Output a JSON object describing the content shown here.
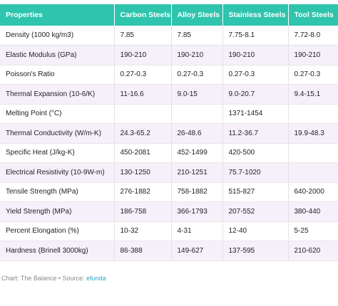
{
  "table": {
    "headers": [
      "Properties",
      "Carbon Steels",
      "Alloy Steels",
      "Stainless Steels",
      "Tool Steels"
    ],
    "rows": [
      [
        "Density (1000 kg/m3)",
        "7.85",
        "7.85",
        "7.75-8.1",
        "7.72-8.0"
      ],
      [
        "Elastic Modulus (GPa)",
        "190-210",
        "190-210",
        "190-210",
        "190-210"
      ],
      [
        "Poisson's Ratio",
        "0.27-0.3",
        "0.27-0.3",
        "0.27-0.3",
        "0.27-0.3"
      ],
      [
        "Thermal Expansion (10-6/K)",
        "11-16.6",
        "9.0-15",
        "9.0-20.7",
        "9.4-15.1"
      ],
      [
        "Melting Point (°C)",
        "",
        "",
        "1371-1454",
        ""
      ],
      [
        "Thermal Conductivity (W/m-K)",
        "24.3-65.2",
        "26-48.6",
        "11.2-36.7",
        "19.9-48.3"
      ],
      [
        "Specific Heat (J/kg-K)",
        "450-2081",
        "452-1499",
        "420-500",
        ""
      ],
      [
        "Electrical Resistivity (10-9W-m)",
        "130-1250",
        "210-1251",
        "75.7-1020",
        ""
      ],
      [
        "Tensile Strength (MPa)",
        "276-1882",
        "758-1882",
        "515-827",
        "640-2000"
      ],
      [
        "Yield Strength (MPa)",
        "186-758",
        "366-1793",
        "207-552",
        "380-440"
      ],
      [
        "Percent Elongation (%)",
        "10-32",
        "4-31",
        "12-40",
        "5-25"
      ],
      [
        "Hardness (Brinell 3000kg)",
        "86-388",
        "149-627",
        "137-595",
        "210-620"
      ]
    ]
  },
  "footer": {
    "prefix": "Chart: The Balance • Source: ",
    "source_link": "efunda"
  },
  "colors": {
    "header_bg": "#2ec4ad",
    "stripe_bg": "#f6f0fb",
    "link": "#2aa7c9"
  }
}
